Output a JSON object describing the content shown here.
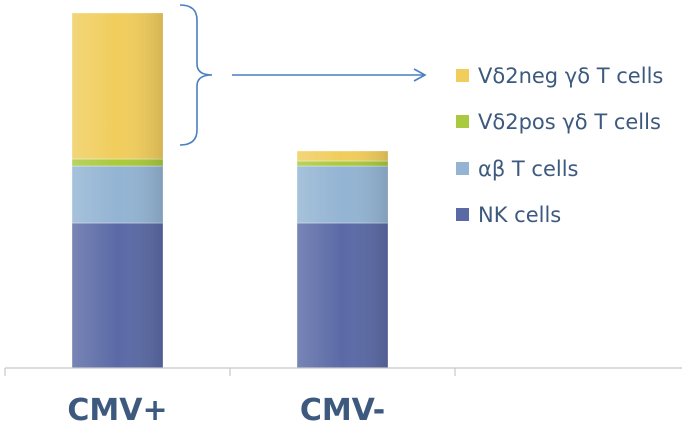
{
  "chart_data": {
    "type": "bar",
    "stacked": true,
    "categories": [
      "CMV+",
      "CMV-"
    ],
    "series": [
      {
        "name": "NK cells",
        "values": [
          145,
          145
        ],
        "color": "#5b6aa6"
      },
      {
        "name": "αβ T cells",
        "values": [
          57,
          57
        ],
        "color": "#93b4d3"
      },
      {
        "name": "Vδ2pos γδ T cells",
        "values": [
          7,
          5
        ],
        "color": "#a9c93e"
      },
      {
        "name": "Vδ2neg γδ T cells",
        "values": [
          146,
          10
        ],
        "color": "#f0cd5c"
      }
    ],
    "legend_order": [
      "Vδ2neg γδ T cells",
      "Vδ2pos γδ T cells",
      "αβ T cells",
      "NK cells"
    ],
    "legend_position": "right",
    "annotation": "bracket with arrow pointing from the CMV+ Vδ2neg γδ T cells segment to its legend entry",
    "ylim": [
      0,
      365
    ],
    "grid": false,
    "title": "",
    "xlabel": "",
    "ylabel": ""
  }
}
